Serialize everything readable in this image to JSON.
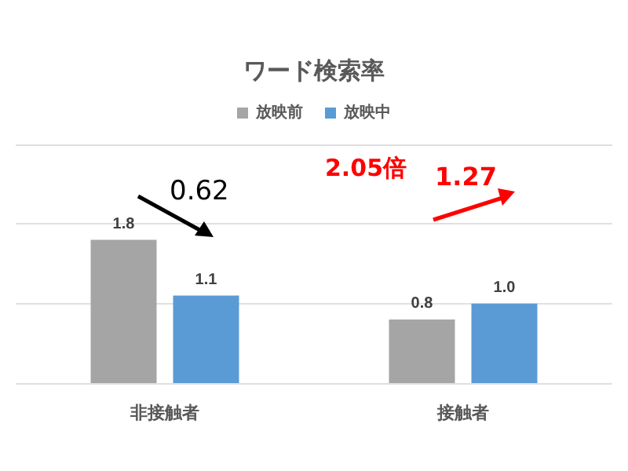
{
  "chart_data": {
    "type": "bar",
    "title": "ワード検索率",
    "categories": [
      "非接触者",
      "接触者"
    ],
    "series": [
      {
        "name": "放映前",
        "color": "#a5a5a5",
        "values": [
          1.8,
          0.8
        ],
        "value_labels": [
          "1.8",
          "0.8"
        ]
      },
      {
        "name": "放映中",
        "color": "#5b9bd5",
        "values": [
          1.1,
          1.0
        ],
        "value_labels": [
          "1.1",
          "1.0"
        ]
      }
    ],
    "ylim": [
      0,
      3
    ],
    "yticks": [
      {
        "value": 0,
        "label": null
      },
      {
        "value": 1,
        "label": null
      },
      {
        "value": 2,
        "label": null
      },
      {
        "value": 3,
        "label": null
      }
    ],
    "tick_labels": "x",
    "grid": "y",
    "legend": "top",
    "annotations": [
      "0.62",
      "2.05倍",
      "1.27"
    ]
  }
}
